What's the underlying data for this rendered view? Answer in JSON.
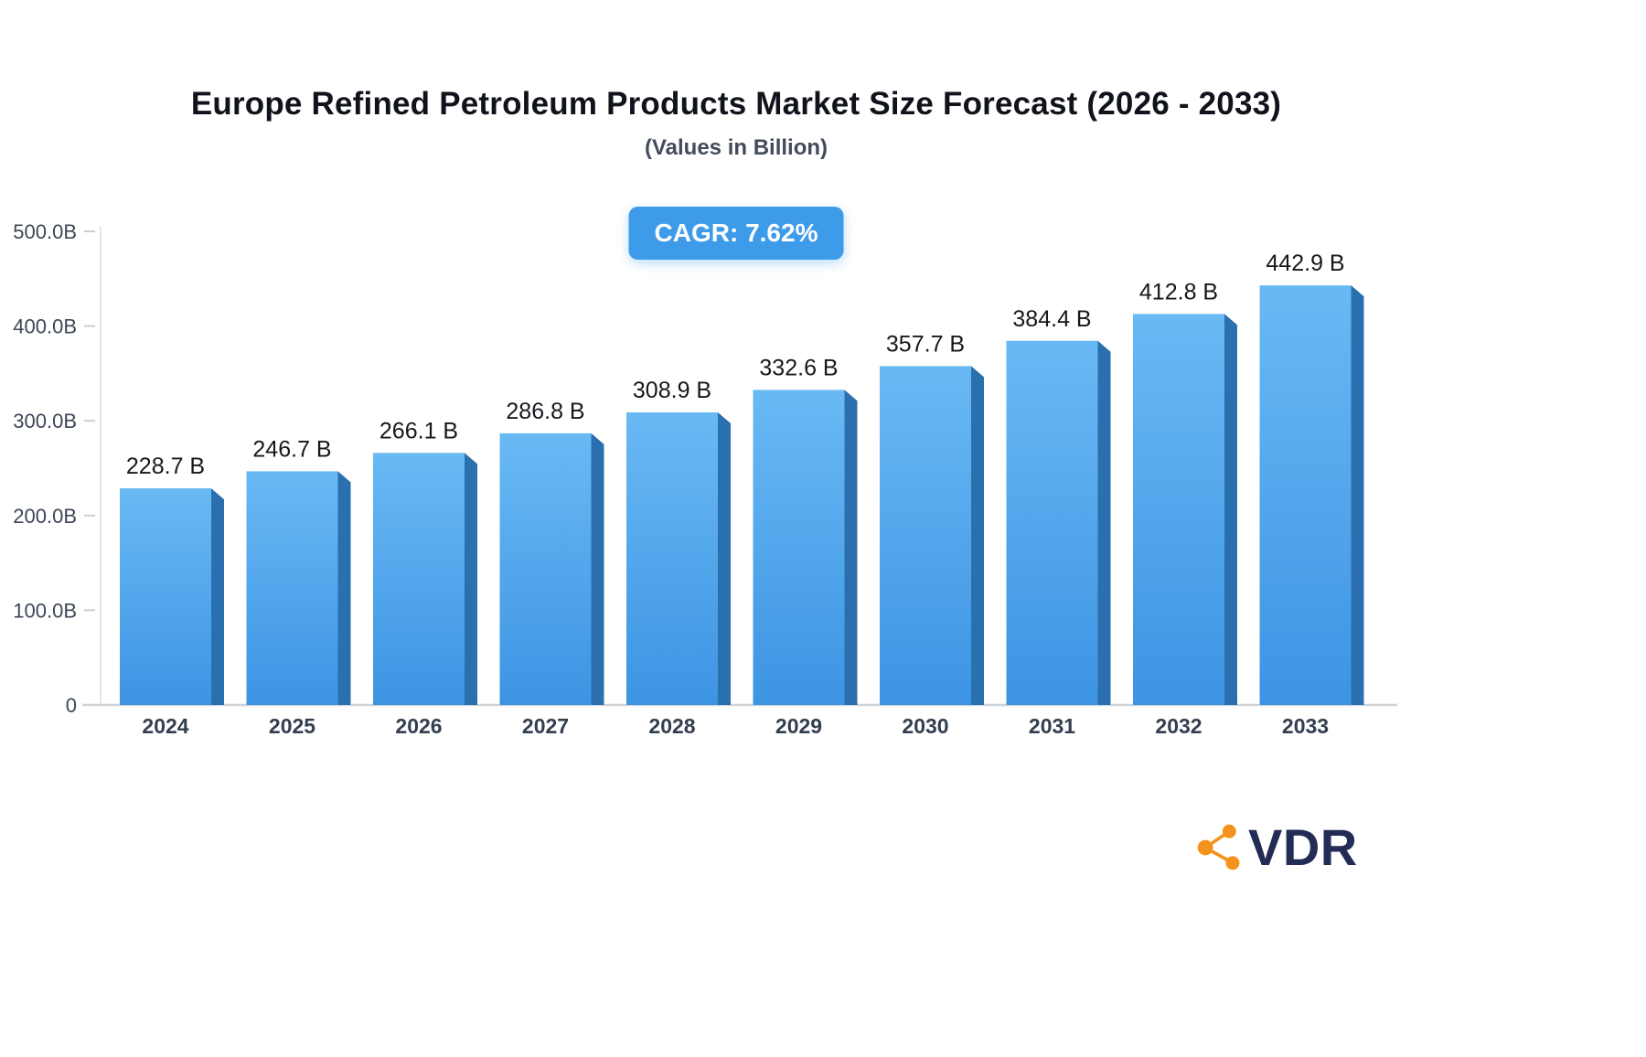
{
  "header": {
    "title": "Europe Refined Petroleum Products Market Size Forecast (2026 - 2033)",
    "subtitle": "(Values in Billion)"
  },
  "badge": {
    "label": "CAGR: 7.62%",
    "bg": "#3E9BE9",
    "text_color": "#FFFFFF"
  },
  "chart_data": {
    "type": "bar",
    "title": "Europe Refined Petroleum Products Market Size Forecast (2026 - 2033)",
    "subtitle": "(Values in Billion)",
    "cagr_label": "CAGR: 7.62%",
    "categories": [
      "2024",
      "2025",
      "2026",
      "2027",
      "2028",
      "2029",
      "2030",
      "2031",
      "2032",
      "2033"
    ],
    "values": [
      228.7,
      246.7,
      266.1,
      286.8,
      308.9,
      332.6,
      357.7,
      384.4,
      412.8,
      442.9
    ],
    "value_labels": [
      "228.7 B",
      "246.7 B",
      "266.1 B",
      "286.8 B",
      "308.9 B",
      "332.6 B",
      "357.7 B",
      "384.4 B",
      "412.8 B",
      "442.9 B"
    ],
    "unit": "Billion",
    "xlabel": "",
    "ylabel": "",
    "ylim": [
      0,
      500
    ],
    "yticks": [
      0,
      100,
      200,
      300,
      400,
      500
    ],
    "ytick_labels": [
      "0",
      "100.0B",
      "200.0B",
      "300.0B",
      "400.0B",
      "500.0B"
    ],
    "grid": false,
    "legend": false,
    "colors": {
      "bar_gradient_top": "#69B9F4",
      "bar_gradient_bottom": "#3D94E3",
      "bar_side": "#2A70AE",
      "axis_line": "#CED3D9",
      "tick_mark": "#C9CED6",
      "tick_label": "#3D4757",
      "value_label": "#16181D",
      "year_label": "#333E4F"
    }
  },
  "logo": {
    "text": "VDR",
    "icon": "network-nodes-icon",
    "icon_color": "#F5921E",
    "text_color": "#232C55"
  }
}
